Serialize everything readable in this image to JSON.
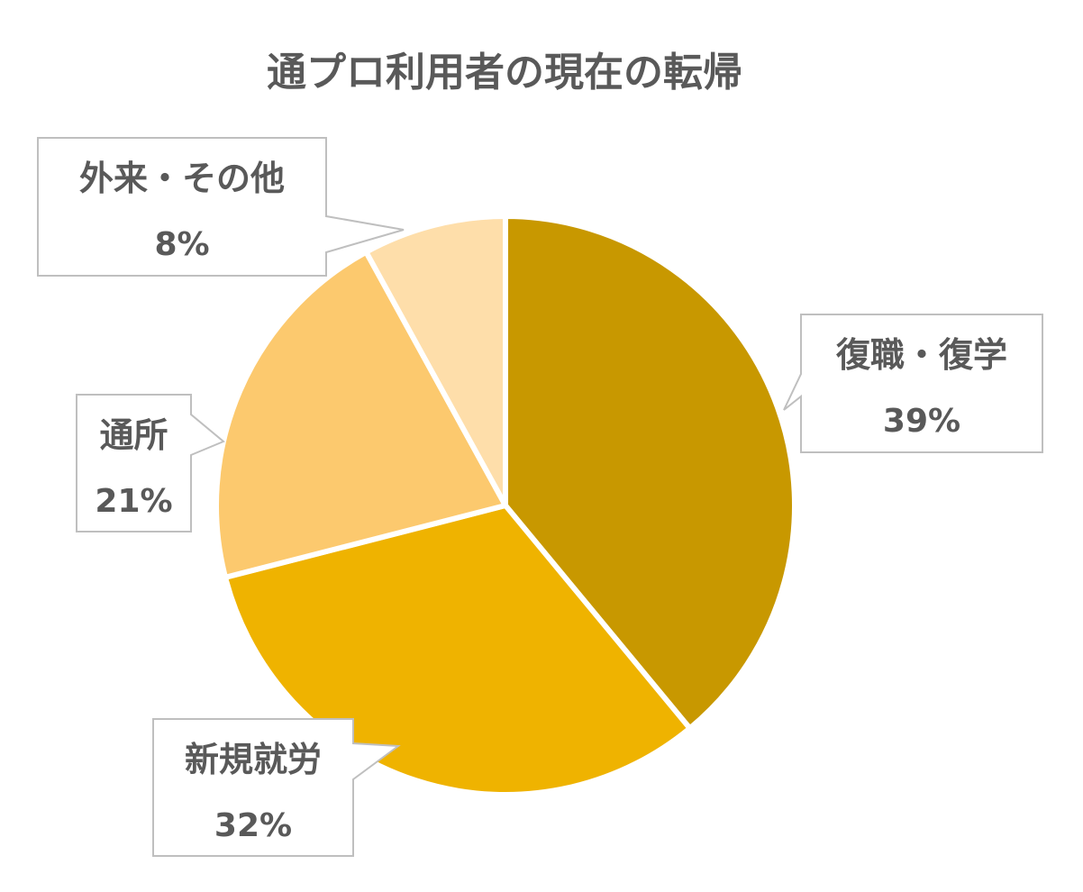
{
  "chart_data": {
    "type": "pie",
    "title": "通プロ利用者の現在の転帰",
    "categories": [
      "復職・復学",
      "新規就労",
      "通所",
      "外来・その他"
    ],
    "values": [
      39,
      32,
      21,
      8
    ],
    "value_labels": [
      "39%",
      "32%",
      "21%",
      "8%"
    ],
    "colors": [
      "#C89800",
      "#EFB300",
      "#FCC96E",
      "#FEDEAA"
    ],
    "start_angle_deg": 0,
    "direction": "clockwise",
    "legend": "none",
    "data_labels": "callouts"
  }
}
